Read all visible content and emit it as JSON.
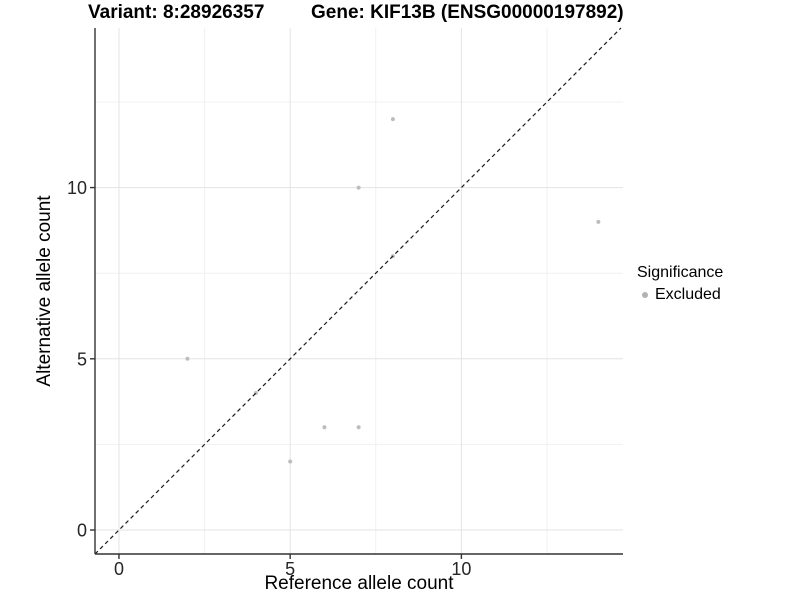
{
  "chart_data": {
    "type": "scatter",
    "title": {
      "variant": "Variant: 8:28926357",
      "gene": "Gene: KIF13B (ENSG00000197892)"
    },
    "xlabel": "Reference allele count",
    "ylabel": "Alternative allele count",
    "xlim": [
      -0.7,
      14.72
    ],
    "ylim": [
      -0.7,
      14.66
    ],
    "x_ticks_major": [
      0,
      5,
      10
    ],
    "x_ticks_minor": [
      2.5,
      7.5,
      12.5
    ],
    "y_ticks_major": [
      0,
      5,
      10
    ],
    "y_ticks_minor": [
      2.5,
      7.5,
      12.5
    ],
    "grid": true,
    "series": [
      {
        "name": "Excluded",
        "color": "#bdbdbd",
        "points": [
          [
            2,
            5
          ],
          [
            4,
            4
          ],
          [
            5,
            2
          ],
          [
            6,
            3
          ],
          [
            7,
            3
          ],
          [
            7,
            10
          ],
          [
            8,
            8
          ],
          [
            8,
            12
          ],
          [
            14,
            9
          ]
        ]
      }
    ],
    "reference_line": {
      "type": "identity",
      "slope": 1,
      "intercept": 0,
      "dashed": true
    },
    "legend": {
      "title": "Significance",
      "position": "right"
    }
  },
  "colors": {
    "point": "#bdbdbd",
    "legend_key": "#b3b3b3",
    "grid_major": "#e3e3e3",
    "grid_minor": "#f0f0f0",
    "axis_line": "#333333",
    "tick_text": "#262626",
    "abline": "#1a1a1a"
  }
}
